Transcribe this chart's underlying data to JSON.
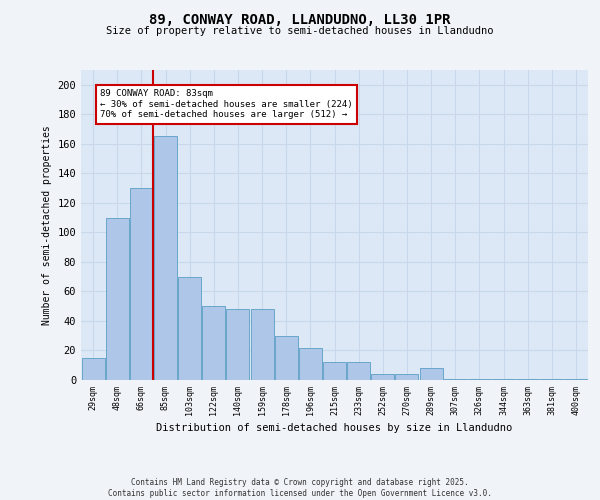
{
  "title_line1": "89, CONWAY ROAD, LLANDUDNO, LL30 1PR",
  "title_line2": "Size of property relative to semi-detached houses in Llandudno",
  "xlabel": "Distribution of semi-detached houses by size in Llandudno",
  "ylabel": "Number of semi-detached properties",
  "categories": [
    "29sqm",
    "48sqm",
    "66sqm",
    "85sqm",
    "103sqm",
    "122sqm",
    "140sqm",
    "159sqm",
    "178sqm",
    "196sqm",
    "215sqm",
    "233sqm",
    "252sqm",
    "270sqm",
    "289sqm",
    "307sqm",
    "326sqm",
    "344sqm",
    "363sqm",
    "381sqm",
    "400sqm"
  ],
  "values": [
    15,
    110,
    130,
    165,
    70,
    50,
    48,
    48,
    30,
    22,
    12,
    12,
    4,
    4,
    8,
    1,
    1,
    1,
    1,
    1,
    1
  ],
  "bar_color": "#aec6e8",
  "bar_edge_color": "#5a9fc5",
  "grid_color": "#c8d8ea",
  "background_color": "#dce8f5",
  "vline_color": "#cc0000",
  "annotation_text": "89 CONWAY ROAD: 83sqm\n← 30% of semi-detached houses are smaller (224)\n70% of semi-detached houses are larger (512) →",
  "annotation_box_color": "#ffffff",
  "annotation_box_edge": "#cc0000",
  "footer_text": "Contains HM Land Registry data © Crown copyright and database right 2025.\nContains public sector information licensed under the Open Government Licence v3.0.",
  "ylim": [
    0,
    210
  ],
  "yticks": [
    0,
    20,
    40,
    60,
    80,
    100,
    120,
    140,
    160,
    180,
    200
  ],
  "fig_bg": "#f0f4f8"
}
